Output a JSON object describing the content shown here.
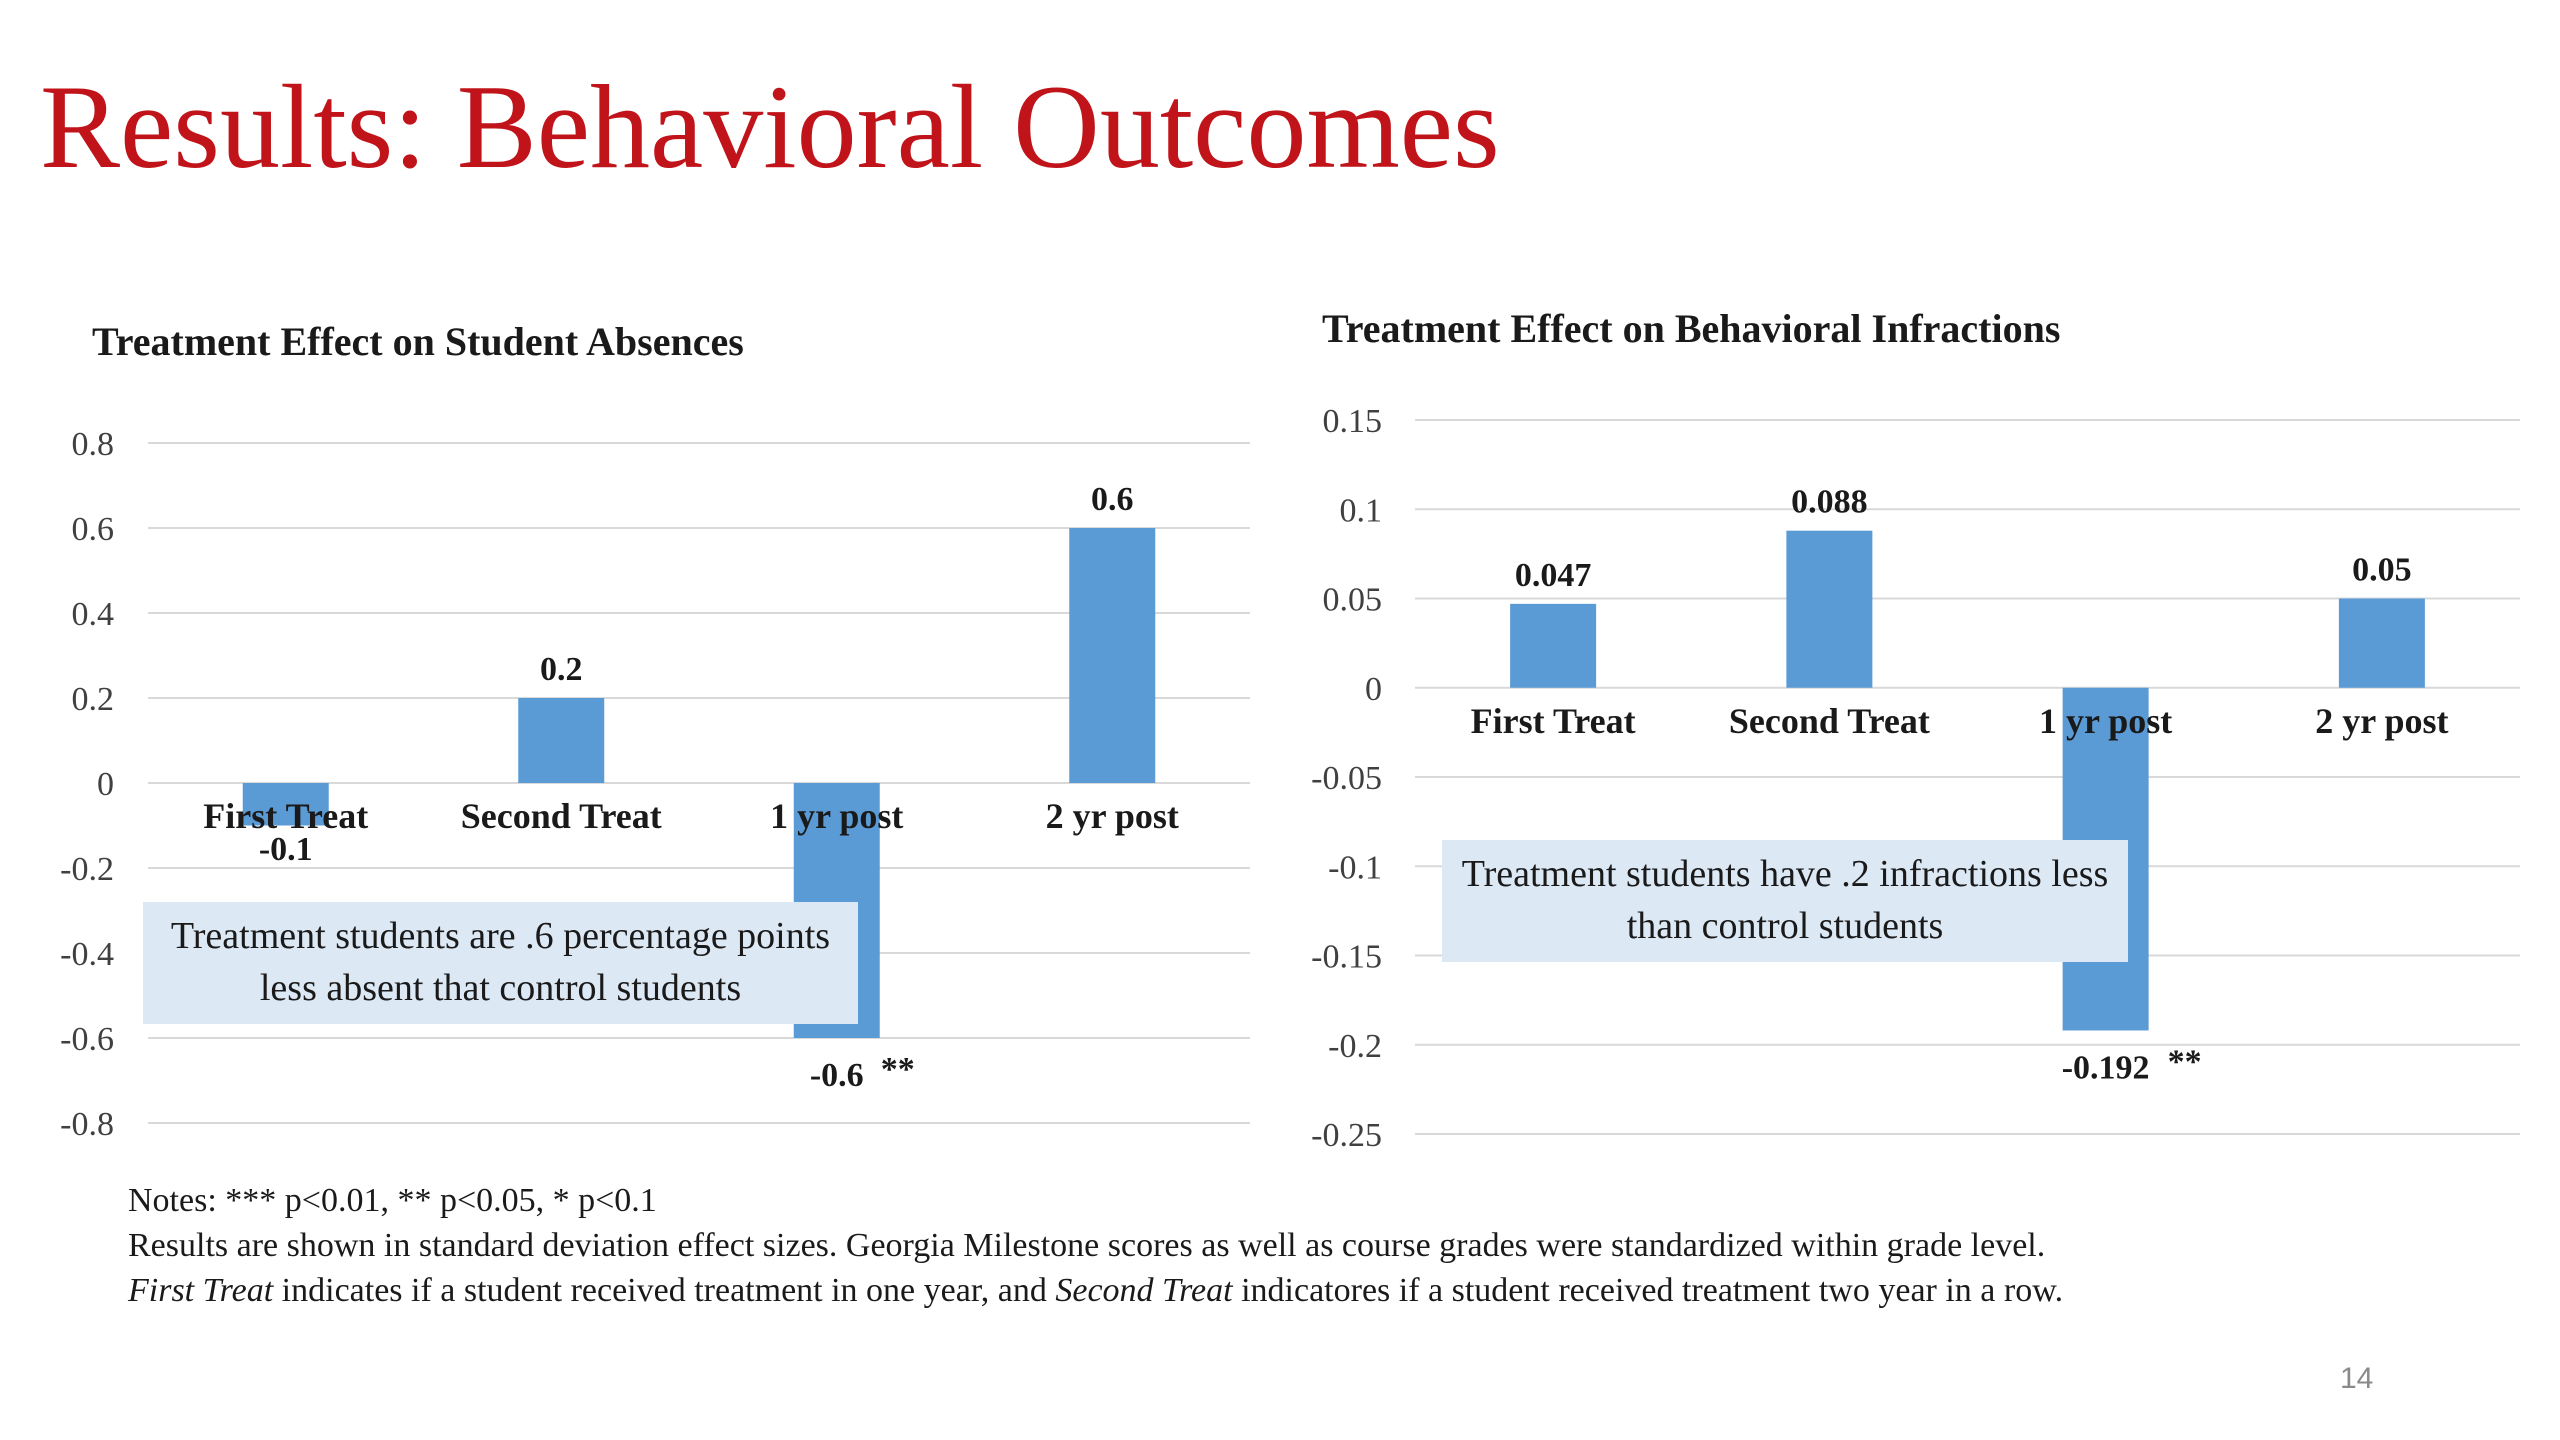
{
  "slide": {
    "title": "Results: Behavioral Outcomes",
    "page_number": "14"
  },
  "colors": {
    "title": "#c0141a",
    "bar": "#5b9bd5",
    "gridline": "#d9d9d9",
    "callout_bg": "#dde8f5"
  },
  "chart_data": [
    {
      "type": "bar",
      "title": "Treatment Effect on Student Absences",
      "categories": [
        "First Treat",
        "Second Treat",
        "1 yr post",
        "2 yr post"
      ],
      "values": [
        -0.1,
        0.2,
        -0.6,
        0.6
      ],
      "data_labels": [
        "-0.1",
        "0.2",
        "-0.6",
        "0.6"
      ],
      "significance": [
        "",
        "",
        "**",
        ""
      ],
      "ylim": [
        -0.8,
        0.8
      ],
      "yticks": [
        0.8,
        0.6,
        0.4,
        0.2,
        0,
        -0.2,
        -0.4,
        -0.6,
        -0.8
      ],
      "ytick_labels": [
        "0.8",
        "0.6",
        "0.4",
        "0.2",
        "0",
        "-0.2",
        "-0.4",
        "-0.6",
        "-0.8"
      ],
      "grid": true,
      "xlabel": "",
      "ylabel": "",
      "callout": "Treatment students are .6 percentage points less absent that control students"
    },
    {
      "type": "bar",
      "title": "Treatment Effect on Behavioral Infractions",
      "categories": [
        "First Treat",
        "Second Treat",
        "1 yr post",
        "2 yr post"
      ],
      "values": [
        0.047,
        0.088,
        -0.192,
        0.05
      ],
      "data_labels": [
        "0.047",
        "0.088",
        "-0.192",
        "0.05"
      ],
      "significance": [
        "",
        "",
        "**",
        ""
      ],
      "ylim": [
        -0.25,
        0.15
      ],
      "yticks": [
        0.15,
        0.1,
        0.05,
        0,
        -0.05,
        -0.1,
        -0.15,
        -0.2,
        -0.25
      ],
      "ytick_labels": [
        "0.15",
        "0.1",
        "0.05",
        "0",
        "-0.05",
        "-0.1",
        "-0.15",
        "-0.2",
        "-0.25"
      ],
      "grid": true,
      "xlabel": "",
      "ylabel": "",
      "callout": "Treatment students have .2 infractions less than control students"
    }
  ],
  "notes": {
    "line1": "Notes: *** p<0.01, ** p<0.05, * p<0.1",
    "line2": "Results are shown in standard deviation effect sizes. Georgia Milestone scores as well as course grades were standardized within grade level.",
    "line3_part1_italic": "First Treat",
    "line3_part2": " indicates if a student received treatment in one year, and ",
    "line3_part3_italic": "Second Treat",
    "line3_part4": " indicatores if a student received treatment two year in a row."
  }
}
